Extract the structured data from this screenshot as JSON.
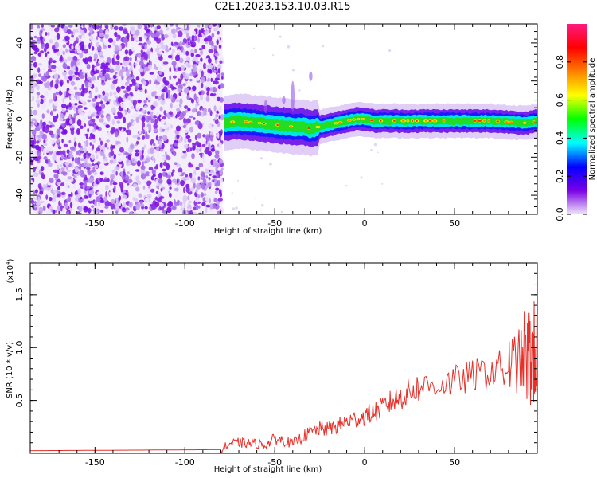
{
  "title": "C2E1.2023.153.10.03.R15",
  "colors": {
    "noise": "#8a2be2",
    "snr_line": "#e8302a",
    "axis": "#000000"
  },
  "chart_data": [
    {
      "type": "heatmap",
      "xlabel": "Height of straight line (km)",
      "ylabel": "Frequency (Hz)",
      "xlim": [
        -186,
        96
      ],
      "ylim": [
        -50,
        50
      ],
      "xticks": [
        -150,
        -100,
        -50,
        0,
        50
      ],
      "yticks": [
        -40,
        -20,
        0,
        20,
        40
      ],
      "xtick_labels": [
        "-150",
        "-100",
        "-50",
        "0",
        "50"
      ],
      "ytick_labels": [
        "-40",
        "-20",
        "0",
        "20",
        "40"
      ],
      "noise_region_x": [
        -186,
        -79
      ],
      "grid": false,
      "ridge": {
        "x": [
          -78,
          -70,
          -60,
          -50,
          -40,
          -35,
          -30,
          -25,
          -20,
          -15,
          -10,
          -5,
          0,
          5,
          10,
          20,
          30,
          50,
          70,
          90,
          96
        ],
        "y": [
          -2,
          -1,
          -2,
          -3,
          -4,
          -4,
          -5,
          -4,
          -3,
          -2,
          -1,
          0,
          0,
          -1,
          -1,
          -1,
          -1,
          -1,
          -1,
          -2,
          -1
        ]
      },
      "colorbar": {
        "label": "Normalized spectral amplitude",
        "range": [
          0,
          1
        ],
        "ticks": [
          0.0,
          0.2,
          0.4,
          0.6,
          0.8
        ],
        "tick_labels": [
          "0.0",
          "0.2",
          "0.4",
          "0.6",
          "0.8"
        ],
        "stops": [
          "#f0e8fa",
          "#7a00e6",
          "#0000ff",
          "#00ffff",
          "#00ff00",
          "#ffff00",
          "#ff8000",
          "#ff0000",
          "#ff1a80"
        ]
      }
    },
    {
      "type": "line",
      "xlabel": "Height of straight line (km)",
      "ylabel": "SNR (10 * v/v)",
      "scale_label": "(x10",
      "scale_exp": "4",
      "xlim": [
        -186,
        96
      ],
      "ylim": [
        0,
        18000
      ],
      "xticks": [
        -150,
        -100,
        -50,
        0,
        50
      ],
      "yticks": [
        5000,
        10000,
        15000
      ],
      "xtick_labels": [
        "-150",
        "-100",
        "-50",
        "0",
        "50"
      ],
      "ytick_labels": [
        "0.5",
        "1.0",
        "1.5"
      ],
      "grid": false,
      "series": [
        {
          "x": [
            -186,
            -150,
            -100,
            -80,
            -75,
            -70,
            -65,
            -60,
            -55,
            -50,
            -45,
            -40,
            -35,
            -30,
            -25,
            -20,
            -15,
            -10,
            -5,
            0,
            5,
            10,
            15,
            20,
            25,
            30,
            40,
            50,
            60,
            70,
            80,
            85,
            90,
            93,
            96
          ],
          "y": [
            250,
            280,
            330,
            350,
            900,
            1000,
            950,
            900,
            800,
            1400,
            1200,
            900,
            1500,
            2000,
            2300,
            2300,
            2600,
            3000,
            3200,
            3500,
            3900,
            4300,
            4900,
            5300,
            5800,
            6200,
            6500,
            6800,
            7300,
            7800,
            8300,
            8700,
            9000,
            9200,
            9800
          ]
        }
      ]
    }
  ]
}
